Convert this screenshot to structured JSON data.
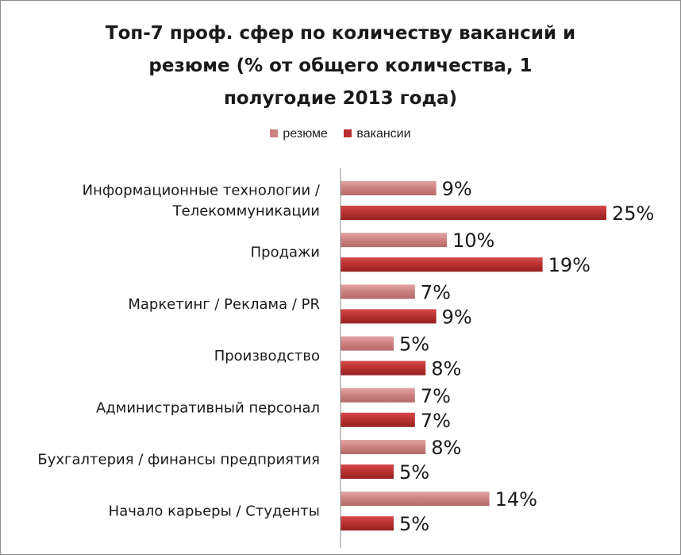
{
  "chart_data": {
    "type": "bar",
    "orientation": "horizontal",
    "title_lines": [
      "Топ-7 проф. сфер по количеству вакансий и",
      "резюме (% от общего количества, 1",
      "полугодие 2013 года)"
    ],
    "categories": [
      [
        "Информационные технологии /",
        "Телекоммуникации"
      ],
      [
        "Продажи"
      ],
      [
        "Маркетинг / Реклама / PR"
      ],
      [
        "Производство"
      ],
      [
        "Административный персонал"
      ],
      [
        "Бухгалтерия / финансы предприятия"
      ],
      [
        "Начало карьеры / Студенты"
      ]
    ],
    "series": [
      {
        "name": "резюме",
        "color": "#cc8080",
        "values": [
          9,
          10,
          7,
          5,
          7,
          8,
          14
        ],
        "labels": [
          "9%",
          "10%",
          "7%",
          "5%",
          "7%",
          "8%",
          "14%"
        ]
      },
      {
        "name": "вакансии",
        "color": "#b83030",
        "values": [
          25,
          19,
          9,
          8,
          7,
          5,
          5
        ],
        "labels": [
          "25%",
          "19%",
          "9%",
          "8%",
          "7%",
          "5%",
          "5%"
        ]
      }
    ],
    "xlim": [
      0,
      25
    ],
    "grid": false,
    "legend_position": "top"
  }
}
